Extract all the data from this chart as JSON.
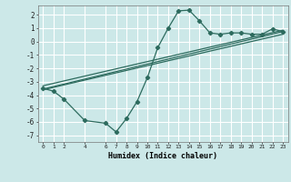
{
  "title": "",
  "xlabel": "Humidex (Indice chaleur)",
  "background_color": "#cce8e8",
  "grid_color": "#ffffff",
  "line_color": "#2d6b5e",
  "xlim": [
    -0.5,
    23.5
  ],
  "ylim": [
    -7.5,
    2.7
  ],
  "yticks": [
    -7,
    -6,
    -5,
    -4,
    -3,
    -2,
    -1,
    0,
    1,
    2
  ],
  "xticks": [
    0,
    1,
    2,
    4,
    6,
    7,
    8,
    9,
    10,
    11,
    12,
    13,
    14,
    15,
    16,
    17,
    18,
    19,
    20,
    21,
    22,
    23
  ],
  "line1_x": [
    0,
    1,
    2,
    4,
    6,
    7,
    8,
    9,
    10,
    11,
    12,
    13,
    14,
    15,
    16,
    17,
    18,
    19,
    20,
    21,
    22,
    23
  ],
  "line1_y": [
    -3.5,
    -3.7,
    -4.3,
    -5.9,
    -6.1,
    -6.75,
    -5.75,
    -4.5,
    -2.7,
    -0.45,
    1.0,
    2.3,
    2.35,
    1.55,
    0.65,
    0.55,
    0.65,
    0.65,
    0.55,
    0.55,
    0.95,
    0.75
  ],
  "straight_line1_x": [
    0,
    23
  ],
  "straight_line1_y": [
    -3.3,
    0.85
  ],
  "straight_line2_x": [
    0,
    23
  ],
  "straight_line2_y": [
    -3.55,
    0.75
  ],
  "straight_line3_x": [
    0,
    23
  ],
  "straight_line3_y": [
    -3.6,
    0.55
  ]
}
